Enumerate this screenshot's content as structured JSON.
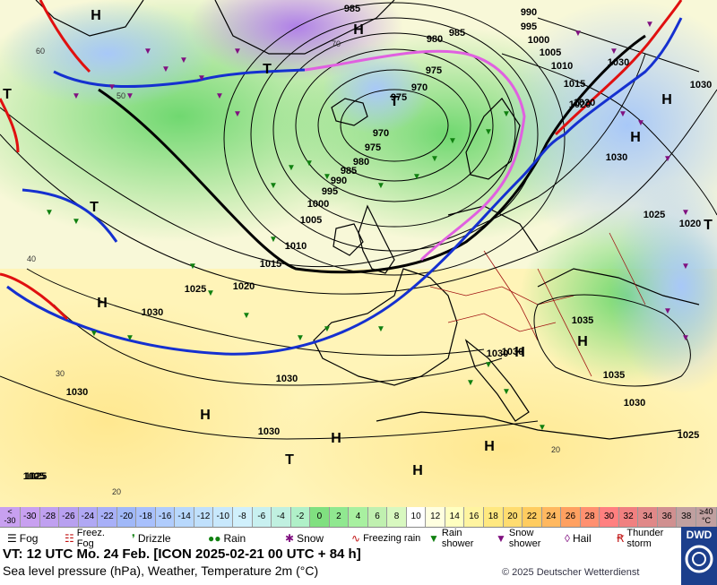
{
  "map": {
    "isobars": [
      "985",
      "990",
      "995",
      "1000",
      "1005",
      "1010",
      "1015",
      "1020",
      "1025",
      "1030",
      "1035",
      "970",
      "975",
      "980"
    ],
    "pressure_labels": [
      {
        "text": "985"
      },
      {
        "text": "990"
      },
      {
        "text": "995"
      },
      {
        "text": "1000"
      },
      {
        "text": "1005"
      },
      {
        "text": "1010"
      },
      {
        "text": "1015"
      },
      {
        "text": "1020"
      },
      {
        "text": "980"
      },
      {
        "text": "985"
      },
      {
        "text": "975"
      },
      {
        "text": "970"
      },
      {
        "text": "975"
      },
      {
        "text": "970"
      },
      {
        "text": "975"
      },
      {
        "text": "980"
      },
      {
        "text": "985"
      },
      {
        "text": "990"
      },
      {
        "text": "995"
      },
      {
        "text": "1000"
      },
      {
        "text": "1005"
      },
      {
        "text": "1010"
      },
      {
        "text": "1015"
      },
      {
        "text": "1025"
      },
      {
        "text": "1020"
      },
      {
        "text": "1030"
      },
      {
        "text": "1030"
      },
      {
        "text": "1030"
      },
      {
        "text": "1030"
      },
      {
        "text": "1025"
      },
      {
        "text": "1030"
      },
      {
        "text": "1030"
      },
      {
        "text": "1035"
      },
      {
        "text": "1035"
      },
      {
        "text": "1030"
      },
      {
        "text": "1025"
      },
      {
        "text": "1030"
      },
      {
        "text": "1025"
      },
      {
        "text": "1020"
      },
      {
        "text": "1030"
      },
      {
        "text": "1020"
      },
      {
        "text": "1030"
      },
      {
        "text": "1025"
      }
    ],
    "centers": [
      "H",
      "H",
      "T",
      "T",
      "T",
      "T",
      "H",
      "H",
      "H",
      "H",
      "H",
      "H",
      "H",
      "T",
      "H",
      "H",
      "T"
    ],
    "degree_labels": [
      "60",
      "70",
      "50",
      "40",
      "30",
      "20",
      "20"
    ],
    "colors": {
      "front_cold": "#1530d0",
      "front_warm": "#e01010",
      "front_occluded": "#e060e0",
      "isobar": "#000000",
      "coast": "#000000",
      "border": "#a01010"
    }
  },
  "scale": {
    "unit_top": "<",
    "unit_bottom": "-30",
    "steps": [
      {
        "label": "-30",
        "color": "#c8a0f0"
      },
      {
        "label": "-28",
        "color": "#c0a0f0"
      },
      {
        "label": "-26",
        "color": "#b8a0f0"
      },
      {
        "label": "-24",
        "color": "#b0a8f4"
      },
      {
        "label": "-22",
        "color": "#a8b0f8"
      },
      {
        "label": "-20",
        "color": "#a0b8f8"
      },
      {
        "label": "-18",
        "color": "#a8c0fc"
      },
      {
        "label": "-16",
        "color": "#b0ccfc"
      },
      {
        "label": "-14",
        "color": "#b8d8fc"
      },
      {
        "label": "-12",
        "color": "#c0e0fc"
      },
      {
        "label": "-10",
        "color": "#c8e8fc"
      },
      {
        "label": "-8",
        "color": "#d0f0fc"
      },
      {
        "label": "-6",
        "color": "#c8f0f0"
      },
      {
        "label": "-4",
        "color": "#c0f0e0"
      },
      {
        "label": "-2",
        "color": "#b0f0c8"
      },
      {
        "label": "0",
        "color": "#80e080"
      },
      {
        "label": "2",
        "color": "#90e890"
      },
      {
        "label": "4",
        "color": "#a8f0a0"
      },
      {
        "label": "6",
        "color": "#c0f0b0"
      },
      {
        "label": "8",
        "color": "#d8f8c0"
      },
      {
        "label": "10",
        "color": "#ffffff"
      },
      {
        "label": "12",
        "color": "#ffffe0"
      },
      {
        "label": "14",
        "color": "#ffffc0"
      },
      {
        "label": "16",
        "color": "#fff4a0"
      },
      {
        "label": "18",
        "color": "#ffe880"
      },
      {
        "label": "20",
        "color": "#ffdc70"
      },
      {
        "label": "22",
        "color": "#ffcc60"
      },
      {
        "label": "24",
        "color": "#ffb860"
      },
      {
        "label": "26",
        "color": "#ffa060"
      },
      {
        "label": "28",
        "color": "#ff9070"
      },
      {
        "label": "30",
        "color": "#ff8080"
      },
      {
        "label": "32",
        "color": "#f08080"
      },
      {
        "label": "34",
        "color": "#e08888"
      },
      {
        "label": "36",
        "color": "#d09090"
      },
      {
        "label": "38",
        "color": "#c0a0a0"
      }
    ],
    "end_top": "≥40",
    "end_bottom": "°C"
  },
  "legend": [
    {
      "label": "Fog",
      "icon": "fog-icon"
    },
    {
      "label": "Freez. Fog",
      "icon": "freezing-fog-icon"
    },
    {
      "label": "Drizzle",
      "icon": "drizzle-icon"
    },
    {
      "label": "Rain",
      "icon": "rain-icon"
    },
    {
      "label": "Snow",
      "icon": "snow-icon"
    },
    {
      "label": "Freezing rain",
      "icon": "freezing-rain-icon"
    },
    {
      "label": "Rain shower",
      "icon": "rain-shower-icon"
    },
    {
      "label": "Snow shower",
      "icon": "snow-shower-icon"
    },
    {
      "label": "Hail",
      "icon": "hail-icon"
    },
    {
      "label": "Thunder storm",
      "icon": "thunderstorm-icon"
    }
  ],
  "info": {
    "valid_time": "VT: 12 UTC Mo.   24 Feb. [ICON 2025-02-21  00 UTC + 84 h]",
    "subtitle": "Sea level pressure (hPa), Weather, Temperature 2m (°C)",
    "copyright": "© 2025 Deutscher Wetterdienst",
    "logo": "DWD"
  }
}
